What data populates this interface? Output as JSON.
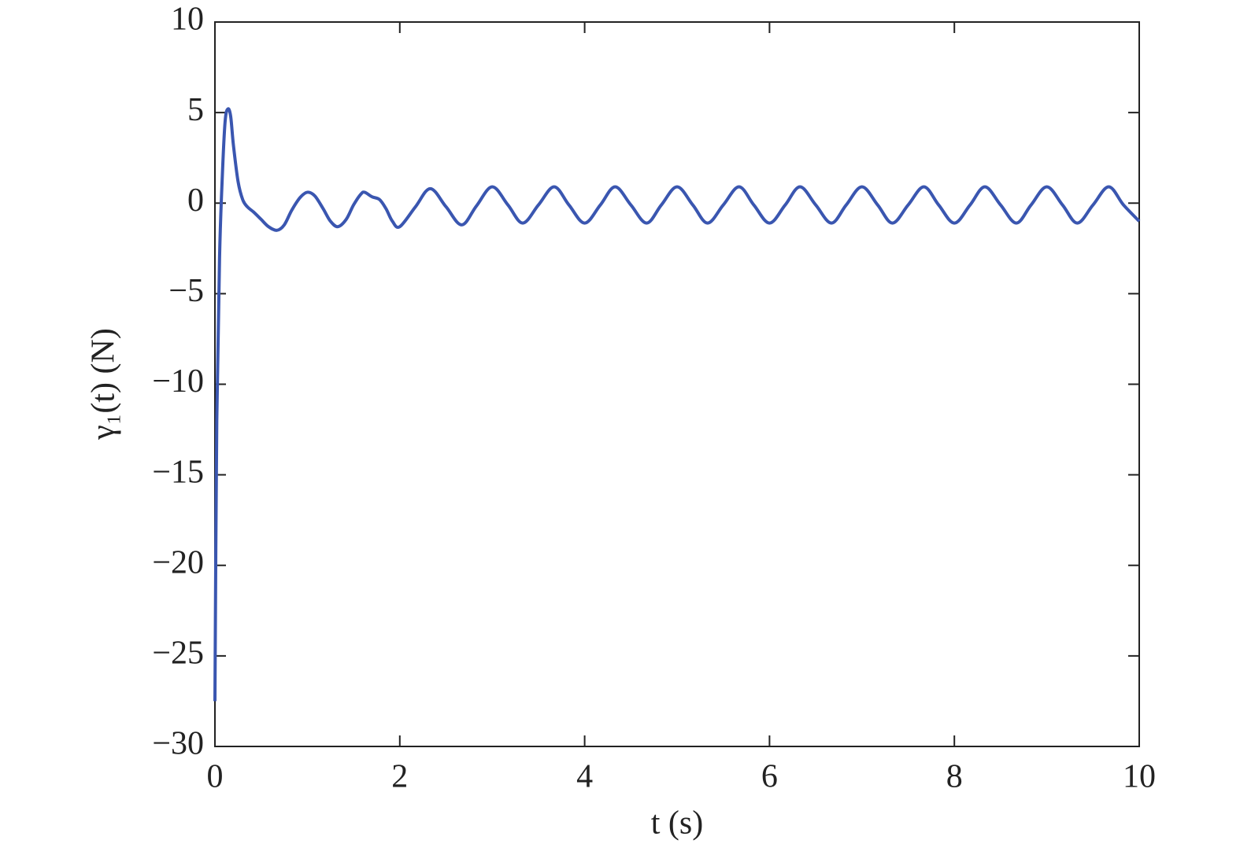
{
  "chart_data": {
    "type": "line",
    "xlabel": "t (s)",
    "ylabel": "γ₁(t) (N)",
    "xlim": [
      0,
      10
    ],
    "ylim": [
      -30,
      10
    ],
    "xticks": [
      0,
      2,
      4,
      6,
      8,
      10
    ],
    "yticks": [
      10,
      5,
      0,
      {
        "value": -5,
        "label": "−5"
      },
      {
        "value": -10,
        "label": "−10"
      },
      {
        "value": -15,
        "label": "−15"
      },
      {
        "value": -20,
        "label": "−20"
      },
      {
        "value": -25,
        "label": "−25"
      },
      {
        "value": -30,
        "label": "−30"
      }
    ],
    "grid": false,
    "series": [
      {
        "color": "#3a56b0",
        "x": [
          0,
          0.02,
          0.05,
          0.08,
          0.11,
          0.14,
          0.17,
          0.2,
          0.25,
          0.3,
          0.35,
          0.42,
          0.5,
          0.58,
          0.67,
          0.75,
          0.83,
          0.92,
          1.0,
          1.08,
          1.17,
          1.25,
          1.33,
          1.42,
          1.5,
          1.58,
          1.62,
          1.7,
          1.78,
          1.85,
          1.92,
          2.0,
          2.17,
          2.33,
          2.5,
          2.67,
          2.83,
          3.0,
          3.17,
          3.33,
          3.5,
          3.67,
          3.83,
          4.0,
          4.17,
          4.33,
          4.5,
          4.67,
          4.83,
          5.0,
          5.17,
          5.33,
          5.5,
          5.67,
          5.83,
          6.0,
          6.17,
          6.33,
          6.5,
          6.67,
          6.83,
          7.0,
          7.17,
          7.33,
          7.5,
          7.67,
          7.83,
          8.0,
          8.17,
          8.33,
          8.5,
          8.67,
          8.83,
          9.0,
          9.17,
          9.33,
          9.5,
          9.67,
          9.83,
          10.0
        ],
        "values": [
          -27.5,
          -12,
          -3,
          1.5,
          4.5,
          5.2,
          4.8,
          3.2,
          1.2,
          0.2,
          -0.2,
          -0.5,
          -0.9,
          -1.3,
          -1.5,
          -1.2,
          -0.4,
          0.3,
          0.6,
          0.4,
          -0.3,
          -1.0,
          -1.3,
          -0.9,
          -0.1,
          0.5,
          0.6,
          0.35,
          0.2,
          -0.3,
          -1.0,
          -1.3,
          -0.2,
          0.8,
          -0.2,
          -1.2,
          -0.15,
          0.9,
          -0.1,
          -1.1,
          -0.1,
          0.9,
          -0.1,
          -1.1,
          -0.1,
          0.9,
          -0.1,
          -1.1,
          -0.1,
          0.9,
          -0.1,
          -1.1,
          -0.1,
          0.9,
          -0.1,
          -1.1,
          -0.1,
          0.9,
          -0.1,
          -1.1,
          -0.1,
          0.9,
          -0.1,
          -1.1,
          -0.1,
          0.9,
          -0.1,
          -1.1,
          -0.1,
          0.9,
          -0.1,
          -1.1,
          -0.1,
          0.9,
          -0.1,
          -1.1,
          -0.1,
          0.9,
          -0.1,
          -1.0
        ]
      }
    ]
  }
}
